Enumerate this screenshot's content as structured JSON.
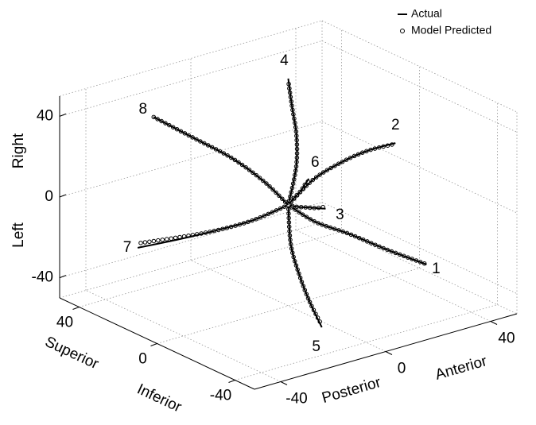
{
  "chart_data": {
    "type": "line3d",
    "series": [
      {
        "name": "Actual",
        "color": "#000000"
      },
      {
        "name": "Model Predicted",
        "color": "#000000",
        "marker": "o"
      }
    ],
    "xlabel": [
      "Posterior",
      "Anterior"
    ],
    "ylabel": [
      "Inferior",
      "Superior"
    ],
    "zlabel": [
      "Left",
      "Right"
    ],
    "xlim": [
      -50,
      50
    ],
    "ylim": [
      -50,
      50
    ],
    "zlim": [
      -50,
      50
    ],
    "xticks": [
      -40,
      0,
      40
    ],
    "yticks": [
      -40,
      0,
      40
    ],
    "zticks": [
      -40,
      0,
      40
    ],
    "grid": true,
    "legend": "upper right",
    "trajectories": [
      {
        "label": "1",
        "actual": {
          "x": [
            0,
            6,
            12,
            17,
            23
          ],
          "y": [
            0,
            -6,
            -15,
            -27,
            -40
          ],
          "z": [
            0,
            -8,
            -12,
            -16,
            -20
          ]
        },
        "predicted": {
          "x": [
            0,
            6,
            12,
            17,
            23
          ],
          "y": [
            0,
            -6,
            -15,
            -27,
            -39
          ],
          "z": [
            0,
            -8,
            -12,
            -16,
            -20
          ]
        }
      },
      {
        "label": "2",
        "actual": {
          "x": [
            0,
            7,
            13,
            20,
            26
          ],
          "y": [
            0,
            -3,
            -8,
            -13,
            -20
          ],
          "z": [
            0,
            11,
            19,
            25,
            30
          ]
        },
        "predicted": {
          "x": [
            0,
            7,
            13,
            20,
            26
          ],
          "y": [
            0,
            -3,
            -8,
            -13,
            -19
          ],
          "z": [
            0,
            11,
            19,
            25,
            29
          ]
        }
      },
      {
        "label": "3",
        "actual": {
          "x": [
            0,
            3,
            6,
            9,
            12
          ],
          "y": [
            0,
            0,
            -1,
            -2,
            -3
          ],
          "z": [
            0,
            -2,
            -3,
            -4,
            -5
          ]
        },
        "predicted": {
          "x": [
            0,
            3,
            6,
            9,
            12
          ],
          "y": [
            0,
            0,
            -1,
            -2,
            -3
          ],
          "z": [
            0,
            -2,
            -3,
            -4,
            -4
          ]
        }
      },
      {
        "label": "4",
        "actual": {
          "x": [
            0,
            6,
            12,
            17,
            23
          ],
          "y": [
            0,
            4,
            12,
            21,
            31
          ],
          "z": [
            0,
            15,
            25,
            33,
            40
          ]
        },
        "predicted": {
          "x": [
            0,
            6,
            12,
            17,
            23
          ],
          "y": [
            0,
            4,
            12,
            21,
            31
          ],
          "z": [
            0,
            15,
            25,
            33,
            39
          ]
        }
      },
      {
        "label": "5",
        "actual": {
          "x": [
            0,
            -2,
            -4,
            -6,
            -8
          ],
          "y": [
            0,
            -4,
            -11,
            -19,
            -28
          ],
          "z": [
            0,
            -17,
            -28,
            -37,
            -45
          ]
        },
        "predicted": {
          "x": [
            0,
            -2,
            -4,
            -6,
            -8
          ],
          "y": [
            0,
            -4,
            -11,
            -19,
            -28
          ],
          "z": [
            0,
            -17,
            -28,
            -37,
            -44
          ]
        }
      },
      {
        "label": "6",
        "actual": {
          "x": [
            0,
            3,
            7,
            10,
            13
          ],
          "y": [
            0,
            1,
            3,
            5,
            7
          ],
          "z": [
            0,
            2,
            3,
            4,
            5
          ]
        },
        "predicted": {
          "x": [
            0,
            3,
            7,
            10,
            13
          ],
          "y": [
            0,
            1,
            3,
            5,
            7
          ],
          "z": [
            0,
            2,
            3,
            4,
            4
          ]
        }
      },
      {
        "label": "7",
        "actual": {
          "x": [
            0,
            -12,
            -24,
            -35,
            -47
          ],
          "y": [
            0,
            2,
            5,
            9,
            14
          ],
          "z": [
            0,
            -4,
            -6,
            -8,
            -10
          ]
        },
        "predicted": {
          "x": [
            0,
            -12,
            -24,
            -35,
            -46
          ],
          "y": [
            0,
            2,
            5,
            9,
            14
          ],
          "z": [
            0,
            -4,
            -6,
            -7,
            -8
          ]
        }
      },
      {
        "label": "8",
        "actual": {
          "x": [
            0,
            -5,
            -9,
            -14,
            -18
          ],
          "y": [
            0,
            6,
            17,
            30,
            45
          ],
          "z": [
            0,
            11,
            19,
            25,
            30
          ]
        },
        "predicted": {
          "x": [
            0,
            -5,
            -9,
            -14,
            -18
          ],
          "y": [
            0,
            6,
            17,
            30,
            45
          ],
          "z": [
            0,
            11,
            19,
            25,
            30
          ]
        }
      }
    ]
  }
}
